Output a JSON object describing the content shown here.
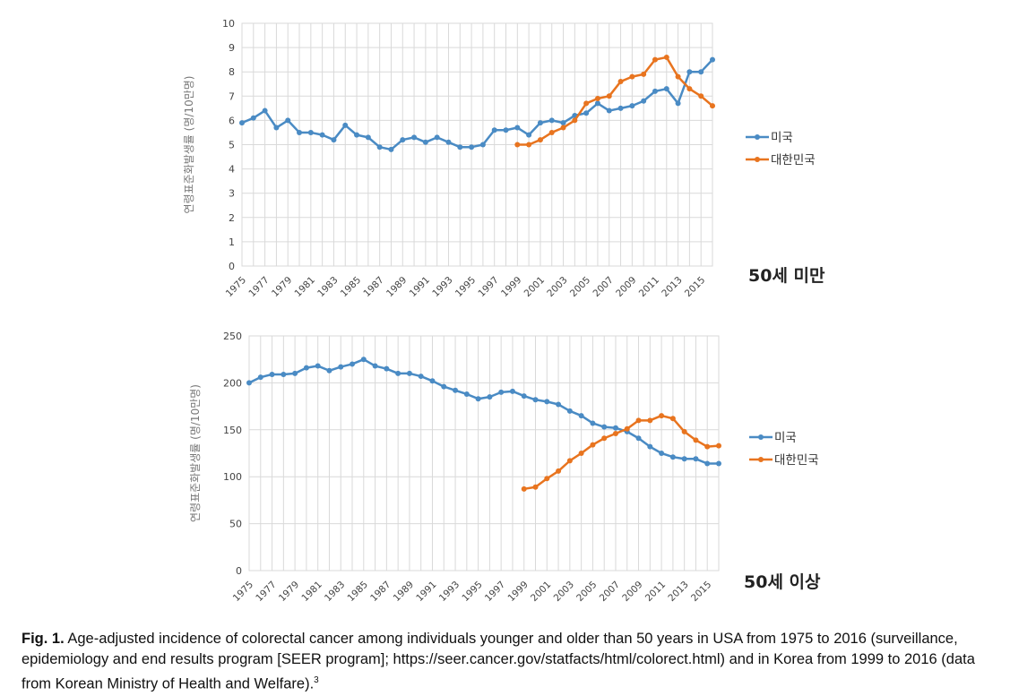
{
  "caption": {
    "label": "Fig. 1.",
    "text": " Age-adjusted incidence of colorectal cancer among individuals younger and older than 50 years in USA from 1975 to 2016 (surveillance, epidemiology and end results program [SEER program]; https://seer.cancer.gov/statfacts/html/colorect.html) and in Korea from 1999 to 2016 (data from Korean Ministry of Health and Welfare).",
    "ref": "3"
  },
  "colors": {
    "usa": "#4a8bc4",
    "korea": "#e8741f",
    "grid": "#d9d9d9",
    "axis_text": "#444444",
    "ylabel": "#777777"
  },
  "chart_data": [
    {
      "type": "line",
      "panel_title": "50세 미만",
      "ylabel": "연령표준화발생률 (명/10만명)",
      "ylim": [
        0,
        10
      ],
      "yticks": [
        0,
        1,
        2,
        3,
        4,
        5,
        6,
        7,
        8,
        9,
        10
      ],
      "xlim": [
        1975,
        2016
      ],
      "xtick_labels": [
        "1975",
        "1977",
        "1979",
        "1981",
        "1983",
        "1985",
        "1987",
        "1989",
        "1991",
        "1993",
        "1995",
        "1997",
        "1999",
        "2001",
        "2003",
        "2005",
        "2007",
        "2009",
        "2011",
        "2013",
        "2015"
      ],
      "grid": true,
      "legend_position": "right",
      "series": [
        {
          "name": "미국",
          "x": [
            1975,
            1976,
            1977,
            1978,
            1979,
            1980,
            1981,
            1982,
            1983,
            1984,
            1985,
            1986,
            1987,
            1988,
            1989,
            1990,
            1991,
            1992,
            1993,
            1994,
            1995,
            1996,
            1997,
            1998,
            1999,
            2000,
            2001,
            2002,
            2003,
            2004,
            2005,
            2006,
            2007,
            2008,
            2009,
            2010,
            2011,
            2012,
            2013,
            2014,
            2015,
            2016
          ],
          "values": [
            5.9,
            6.1,
            6.4,
            5.7,
            6.0,
            5.5,
            5.5,
            5.4,
            5.2,
            5.8,
            5.4,
            5.3,
            4.9,
            4.8,
            5.2,
            5.3,
            5.1,
            5.3,
            5.1,
            4.9,
            4.9,
            5.0,
            5.6,
            5.6,
            5.7,
            5.4,
            5.9,
            6.0,
            5.9,
            6.2,
            6.3,
            6.7,
            6.4,
            6.5,
            6.6,
            6.8,
            7.2,
            7.3,
            6.7,
            8.0,
            8.0,
            8.5
          ]
        },
        {
          "name": "대한민국",
          "x": [
            1999,
            2000,
            2001,
            2002,
            2003,
            2004,
            2005,
            2006,
            2007,
            2008,
            2009,
            2010,
            2011,
            2012,
            2013,
            2014,
            2015,
            2016
          ],
          "values": [
            5.0,
            5.0,
            5.2,
            5.5,
            5.7,
            6.0,
            6.7,
            6.9,
            7.0,
            7.6,
            7.8,
            7.9,
            8.5,
            8.6,
            7.8,
            7.3,
            7.0,
            6.6
          ]
        }
      ]
    },
    {
      "type": "line",
      "panel_title": "50세 이상",
      "ylabel": "연령표준화발생률 (명/10만명)",
      "ylim": [
        0,
        250
      ],
      "yticks": [
        0,
        50,
        100,
        150,
        200,
        250
      ],
      "xlim": [
        1975,
        2016
      ],
      "xtick_labels": [
        "1975",
        "1977",
        "1979",
        "1981",
        "1983",
        "1985",
        "1987",
        "1989",
        "1991",
        "1993",
        "1995",
        "1997",
        "1999",
        "2001",
        "2003",
        "2005",
        "2007",
        "2009",
        "2011",
        "2013",
        "2015"
      ],
      "grid": true,
      "legend_position": "right",
      "series": [
        {
          "name": "미국",
          "x": [
            1975,
            1976,
            1977,
            1978,
            1979,
            1980,
            1981,
            1982,
            1983,
            1984,
            1985,
            1986,
            1987,
            1988,
            1989,
            1990,
            1991,
            1992,
            1993,
            1994,
            1995,
            1996,
            1997,
            1998,
            1999,
            2000,
            2001,
            2002,
            2003,
            2004,
            2005,
            2006,
            2007,
            2008,
            2009,
            2010,
            2011,
            2012,
            2013,
            2014,
            2015,
            2016
          ],
          "values": [
            200,
            206,
            209,
            209,
            210,
            216,
            218,
            213,
            217,
            220,
            225,
            218,
            215,
            210,
            210,
            207,
            202,
            196,
            192,
            188,
            183,
            185,
            190,
            191,
            186,
            182,
            180,
            177,
            170,
            165,
            157,
            153,
            152,
            148,
            141,
            132,
            125,
            121,
            119,
            119,
            114,
            114
          ]
        },
        {
          "name": "대한민국",
          "x": [
            1999,
            2000,
            2001,
            2002,
            2003,
            2004,
            2005,
            2006,
            2007,
            2008,
            2009,
            2010,
            2011,
            2012,
            2013,
            2014,
            2015,
            2016
          ],
          "values": [
            87,
            89,
            98,
            106,
            117,
            125,
            134,
            141,
            146,
            151,
            160,
            160,
            165,
            162,
            148,
            139,
            132,
            133
          ]
        }
      ]
    }
  ]
}
